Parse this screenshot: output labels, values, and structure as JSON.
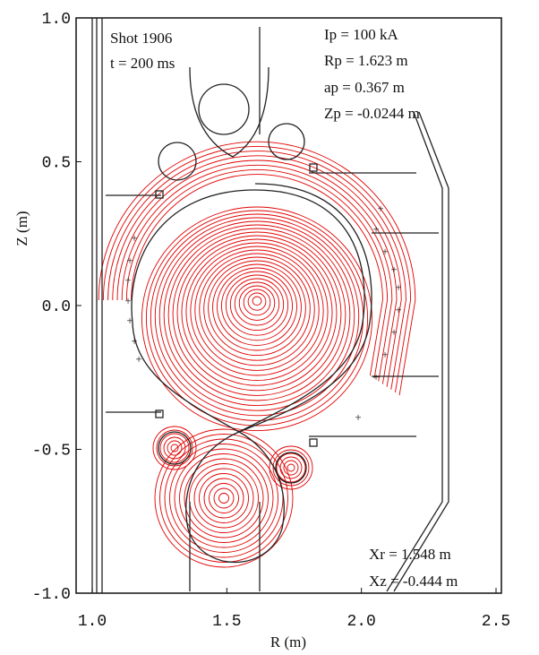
{
  "chart_data": {
    "type": "equilibrium",
    "xlabel": "R (m)",
    "ylabel": "Z (m)",
    "xlim": [
      0.94,
      2.52
    ],
    "ylim": [
      -1.0,
      1.0
    ],
    "xticks": [
      {
        "value": 1.0,
        "label": "1.0"
      },
      {
        "value": 1.5,
        "label": "1.5"
      },
      {
        "value": 2.0,
        "label": "2.0"
      },
      {
        "value": 2.5,
        "label": "2.5"
      }
    ],
    "yticks": [
      {
        "value": 1.0,
        "label": "1.0"
      },
      {
        "value": 0.5,
        "label": "0.5"
      },
      {
        "value": 0.0,
        "label": "0.0"
      },
      {
        "value": -0.5,
        "label": "-0.5"
      },
      {
        "value": -1.0,
        "label": "-1.0"
      }
    ],
    "annotations": [
      "Shot 1906",
      "t = 200 ms",
      "Ip = 100 kA",
      "Rp = 1.623 m",
      "ap = 0.367 m",
      "Zp = -0.0244 m",
      "Xr = 1.548 m",
      "Xz = -0.444 m"
    ],
    "contour_color": "#e00000"
  }
}
